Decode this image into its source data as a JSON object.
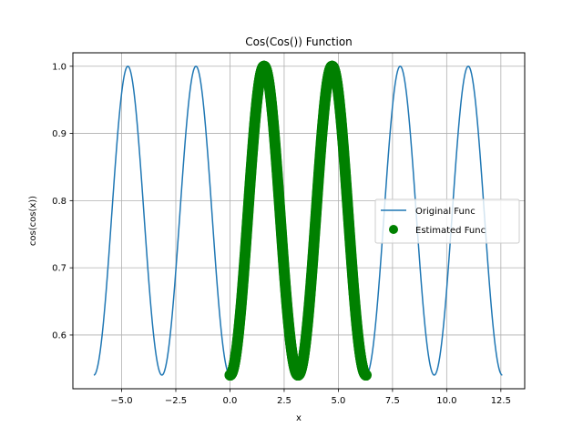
{
  "chart_data": {
    "type": "line",
    "title": "Cos(Cos()) Function",
    "xlabel": "x",
    "ylabel": "cos(cos(x))",
    "xlim": [
      -7.25,
      13.6
    ],
    "ylim": [
      0.52,
      1.02
    ],
    "xticks": [
      -5.0,
      -2.5,
      0.0,
      2.5,
      5.0,
      7.5,
      10.0,
      12.5
    ],
    "xtick_labels": [
      "−5.0",
      "−2.5",
      "0.0",
      "2.5",
      "5.0",
      "7.5",
      "10.0",
      "12.5"
    ],
    "yticks": [
      0.6,
      0.7,
      0.8,
      0.9,
      1.0
    ],
    "ytick_labels": [
      "0.6",
      "0.7",
      "0.8",
      "0.9",
      "1.0"
    ],
    "grid": true,
    "legend_position": "center-right",
    "series": [
      {
        "name": "Original Func",
        "style": "line",
        "color": "#1f77b4",
        "function": "cos(cos(x))",
        "x_range": [
          -6.283,
          12.566
        ]
      },
      {
        "name": "Estimated Func",
        "style": "markers",
        "color": "#008000",
        "function": "cos(cos(x))",
        "x_range": [
          0.0,
          6.283
        ]
      }
    ]
  }
}
